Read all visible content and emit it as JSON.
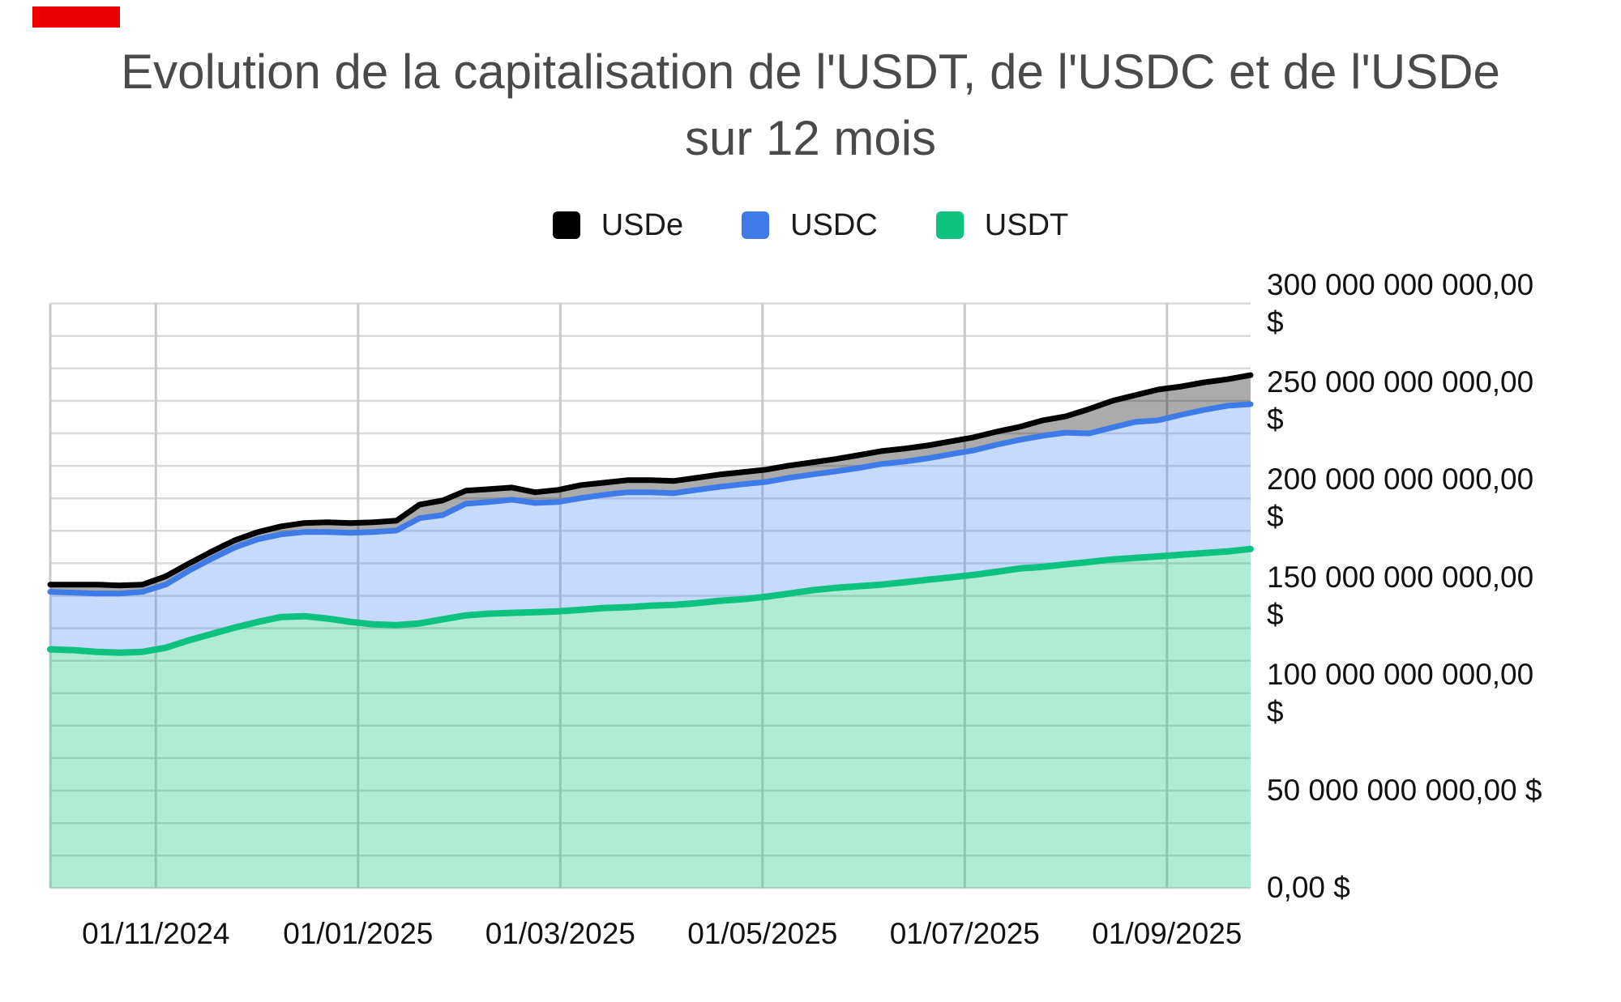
{
  "page": {
    "background": "#ffffff"
  },
  "red_marker": {
    "color": "#ee0000"
  },
  "title": {
    "text": "Evolution de la capitalisation de l'USDT, de l'USDC et de l'USDe sur 12 mois",
    "line1": "Evolution de la capitalisation de l'USDT, de l'USDC et de l'USDe",
    "line2": "sur 12 mois",
    "color": "#4a4a4a"
  },
  "legend": {
    "position": "top",
    "items": [
      {
        "label": "USDe",
        "color": "#000000"
      },
      {
        "label": "USDC",
        "color": "#3e7be8"
      },
      {
        "label": "USDT",
        "color": "#0dc17f"
      }
    ]
  },
  "chart_data": {
    "type": "area",
    "stacked": true,
    "title": "Evolution de la capitalisation de l'USDT, de l'USDC et de l'USDe sur 12 mois",
    "unit": "billion USD",
    "x": [
      "2024-09-28",
      "2024-10-05",
      "2024-10-12",
      "2024-10-19",
      "2024-10-26",
      "2024-11-02",
      "2024-11-09",
      "2024-11-16",
      "2024-11-23",
      "2024-11-30",
      "2024-12-07",
      "2024-12-14",
      "2024-12-21",
      "2024-12-28",
      "2025-01-04",
      "2025-01-11",
      "2025-01-18",
      "2025-01-25",
      "2025-02-01",
      "2025-02-08",
      "2025-02-15",
      "2025-02-22",
      "2025-03-01",
      "2025-03-08",
      "2025-03-15",
      "2025-03-22",
      "2025-03-29",
      "2025-04-05",
      "2025-04-12",
      "2025-04-19",
      "2025-04-26",
      "2025-05-03",
      "2025-05-10",
      "2025-05-17",
      "2025-05-24",
      "2025-05-31",
      "2025-06-07",
      "2025-06-14",
      "2025-06-21",
      "2025-06-28",
      "2025-07-05",
      "2025-07-12",
      "2025-07-19",
      "2025-07-26",
      "2025-08-02",
      "2025-08-09",
      "2025-08-16",
      "2025-08-23",
      "2025-08-30",
      "2025-09-06",
      "2025-09-13",
      "2025-09-20",
      "2025-09-27"
    ],
    "series": [
      {
        "name": "USDT",
        "color": "#0dc17f",
        "fill": "rgba(13,193,127,0.33)",
        "values": [
          122.5,
          122.1,
          121.2,
          120.8,
          121.2,
          123.3,
          127.1,
          130.4,
          133.7,
          136.6,
          139.1,
          139.5,
          138.3,
          136.6,
          135.3,
          134.9,
          135.8,
          137.9,
          139.9,
          140.8,
          141.2,
          141.6,
          142.0,
          142.8,
          143.7,
          144.1,
          144.9,
          145.3,
          146.2,
          147.4,
          148.2,
          149.5,
          151.1,
          152.8,
          154.0,
          154.9,
          155.7,
          156.9,
          158.2,
          159.4,
          160.7,
          162.3,
          164.0,
          164.8,
          166.1,
          167.3,
          168.6,
          169.4,
          170.2,
          171.1,
          171.9,
          172.7,
          174.0
        ]
      },
      {
        "name": "USDC",
        "color": "#3e7be8",
        "fill": "rgba(66,133,244,0.30)",
        "values": [
          29.5,
          29.5,
          29.9,
          30.3,
          30.8,
          32.4,
          35.7,
          38.6,
          41.1,
          42.4,
          42.4,
          43.2,
          44.4,
          45.7,
          47.4,
          48.6,
          54.0,
          53.5,
          57.3,
          57.3,
          58.1,
          56.0,
          56.1,
          57.3,
          58.1,
          59.0,
          58.2,
          57.3,
          58.1,
          58.5,
          59.0,
          58.9,
          59.4,
          59.4,
          59.8,
          60.6,
          61.9,
          61.9,
          62.3,
          63.2,
          63.9,
          65.2,
          66.0,
          67.3,
          67.6,
          66.0,
          67.7,
          69.8,
          69.8,
          71.8,
          73.5,
          74.8,
          74.3
        ]
      },
      {
        "name": "USDe",
        "color": "#000000",
        "fill": "rgba(0,0,0,0.33)",
        "values": [
          3.7,
          4.1,
          4.6,
          4.2,
          3.7,
          4.2,
          3.7,
          3.7,
          3.7,
          3.7,
          4.1,
          4.6,
          5.0,
          5.0,
          5.0,
          5.0,
          7.0,
          7.5,
          6.7,
          6.6,
          6.2,
          5.5,
          6.2,
          6.7,
          6.2,
          6.2,
          6.2,
          6.3,
          6.2,
          6.3,
          6.2,
          6.3,
          6.3,
          6.2,
          6.3,
          6.6,
          6.6,
          6.7,
          6.6,
          6.6,
          6.7,
          6.7,
          6.7,
          7.9,
          8.4,
          12.5,
          13.7,
          13.7,
          15.8,
          14.5,
          14.1,
          13.6,
          14.9
        ]
      }
    ],
    "y_axis": {
      "side": "right",
      "min": 0,
      "max": 300000000000,
      "tick_interval": 50000000000,
      "tick_values_billions": [
        300,
        250,
        200,
        150,
        100,
        50,
        0
      ],
      "ticks": [
        "300 000 000 000,00 $",
        "250 000 000 000,00 $",
        "200 000 000 000,00 $",
        "150 000 000 000,00 $",
        "100 000 000 000,00 $",
        "50 000 000 000,00 $",
        "0,00 $"
      ]
    },
    "x_axis": {
      "ticks": [
        "01/11/2024",
        "01/01/2025",
        "01/03/2025",
        "01/05/2025",
        "01/07/2025",
        "01/09/2025"
      ]
    },
    "grid": {
      "horizontal_lines": 19,
      "vertical_on_ticks": true,
      "h_color": "#d9d9d9",
      "v_color": "#c9c9c9"
    },
    "legend_position": "top",
    "legend_order": [
      "USDe",
      "USDC",
      "USDT"
    ]
  }
}
